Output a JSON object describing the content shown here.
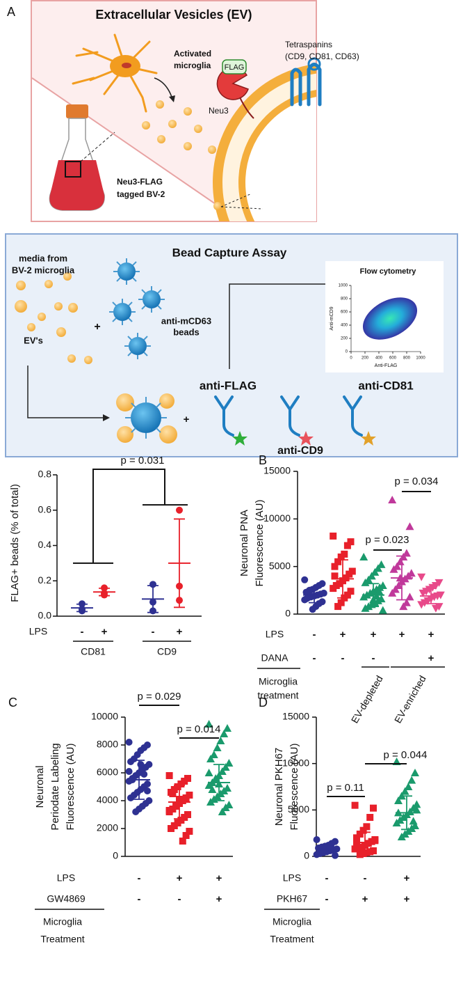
{
  "figure": {
    "panel_a": {
      "label": "A",
      "title": "Extracellular Vesicles (EV)",
      "cell_label": [
        "Activated",
        "microglia"
      ],
      "tag": "FLAG",
      "enzyme": "Neu3",
      "membrane_protein": [
        "Tetraspanins",
        "(CD9, CD81, CD63)"
      ],
      "culture_label": [
        "Neu3-FLAG",
        "tagged BV-2"
      ]
    },
    "bead_assay": {
      "title": "Bead Capture Assay",
      "source_label": [
        "media from",
        "BV-2 microglia"
      ],
      "vesicle_label": "EV's",
      "plus": "+",
      "bead_label": [
        "anti-mCD63",
        "beads"
      ],
      "antibodies": [
        "anti-FLAG",
        "anti-CD9",
        "anti-CD81"
      ],
      "plus_2": "+"
    }
  },
  "chart_data": [
    {
      "type": "density",
      "title": "Flow cytometry",
      "x_label": "Anti-FLAG",
      "y_label": "Anti-mCD9",
      "xlim": [
        0,
        1000
      ],
      "ylim": [
        0,
        1000
      ],
      "xticks": [
        0,
        200,
        400,
        600,
        800,
        1000
      ],
      "yticks": [
        0,
        200,
        400,
        600,
        800,
        1000
      ]
    },
    {
      "type": "dotplot",
      "y_label": [
        "FLAG+ beads (% of total)"
      ],
      "ylim": [
        0,
        0.8
      ],
      "yticks": [
        {
          "value": 0,
          "label": "0.0"
        },
        0.2,
        0.4,
        0.6,
        0.8
      ],
      "series": [
        {
          "color": "#2e3192",
          "marker": "circle",
          "values": [
            0.03,
            0.07,
            0.04
          ],
          "mean": 0.047,
          "sd": 0.021
        },
        {
          "color": "#e8202a",
          "marker": "circle",
          "values": [
            0.12,
            0.16,
            0.13
          ],
          "mean": 0.137,
          "sd": 0.021
        },
        {
          "color": "#2e3192",
          "marker": "circle",
          "values": [
            0.18,
            0.03,
            0.08
          ],
          "mean": 0.097,
          "sd": 0.076
        },
        {
          "color": "#e8202a",
          "marker": "circle",
          "values": [
            0.6,
            0.17,
            0.09
          ],
          "mean": 0.3,
          "sd": 0.25
        }
      ],
      "rows": [
        {
          "name": "LPS",
          "labels": [
            "-",
            "+",
            "-",
            "+"
          ]
        }
      ],
      "group_labels": [
        "CD81",
        "CD9"
      ],
      "annotations": [
        "p = 0.031"
      ]
    },
    {
      "type": "dotplot",
      "panel_label": "B",
      "y_label": [
        "Neuronal PNA",
        "Fluorescence (AU)"
      ],
      "ylim": [
        0,
        15000
      ],
      "yticks": [
        0,
        5000,
        10000,
        15000
      ],
      "series": [
        {
          "color": "#2e3192",
          "marker": "circle",
          "values": [
            3600,
            3200,
            3000,
            2800,
            2600,
            2500,
            2300,
            2200,
            2100,
            2000,
            1900,
            1800,
            1700,
            1500,
            1300,
            1100,
            800,
            500,
            2400,
            1600
          ],
          "mean": 2000,
          "sd": 800
        },
        {
          "color": "#e8202a",
          "marker": "square",
          "values": [
            8200,
            7600,
            7200,
            6300,
            6000,
            5500,
            5000,
            4500,
            4200,
            3800,
            3500,
            3200,
            3000,
            2700,
            2400,
            2000,
            1700,
            1200,
            800,
            4000
          ],
          "mean": 3700,
          "sd": 2000
        },
        {
          "color": "#1a9a6c",
          "marker": "triangle",
          "values": [
            6000,
            5200,
            4800,
            4400,
            4000,
            3600,
            3300,
            3000,
            2800,
            2600,
            2400,
            2200,
            2000,
            1800,
            1600,
            1400,
            1200,
            1000,
            800,
            600,
            400,
            2300,
            1900,
            1500
          ],
          "mean": 2000,
          "sd": 1200
        },
        {
          "color": "#c0399b",
          "marker": "triangle",
          "values": [
            12000,
            9200,
            6400,
            6000,
            5500,
            5000,
            4700,
            4300,
            4000,
            3700,
            3400,
            3000,
            2600,
            2200,
            1800,
            1200,
            800,
            3800
          ],
          "mean": 3800,
          "sd": 2300
        },
        {
          "color": "#e84a8a",
          "marker": "triangle-down",
          "values": [
            3900,
            3300,
            3000,
            2800,
            2600,
            2400,
            2200,
            2000,
            1900,
            1800,
            1600,
            1400,
            1200,
            1000,
            800,
            600
          ],
          "mean": 1900,
          "sd": 800
        }
      ],
      "rows": [
        {
          "name": "LPS",
          "labels": [
            "-",
            "+",
            "+",
            "+",
            "+"
          ]
        },
        {
          "name": "DANA",
          "labels": [
            "-",
            "-",
            "-",
            null,
            "+"
          ]
        }
      ],
      "treatment_label": [
        "Microglia",
        "treatment"
      ],
      "category_labels": [
        "EV-depleted",
        "EV-enriched"
      ],
      "annotations": [
        "p = 0.023",
        "p = 0.034"
      ]
    },
    {
      "type": "dotplot",
      "panel_label": "C",
      "y_label": [
        "Neuronal",
        "Periodate Labeling",
        "Fluorescence (AU)"
      ],
      "ylim": [
        0,
        10000
      ],
      "yticks": [
        0,
        2000,
        4000,
        6000,
        8000,
        10000
      ],
      "series": [
        {
          "color": "#2e3192",
          "marker": "circle",
          "values": [
            8200,
            8000,
            7800,
            7600,
            7300,
            7000,
            6800,
            6600,
            6400,
            6200,
            6000,
            5800,
            5600,
            5400,
            5200,
            5000,
            4800,
            4600,
            4400,
            4200,
            4000,
            3800,
            3600,
            3400,
            3200,
            5500,
            6100,
            4700,
            5900,
            6600
          ],
          "mean": 5500,
          "sd": 1400
        },
        {
          "color": "#e8202a",
          "marker": "square",
          "values": [
            5800,
            5600,
            5400,
            5200,
            5000,
            4800,
            4600,
            4400,
            4200,
            4000,
            3800,
            3600,
            3400,
            3200,
            3000,
            2800,
            2600,
            2400,
            2200,
            2000,
            1800,
            1500,
            1100,
            4100,
            3700,
            4500,
            3300
          ],
          "mean": 3900,
          "sd": 1200
        },
        {
          "color": "#1a9a6c",
          "marker": "triangle",
          "values": [
            9500,
            9200,
            8800,
            8300,
            7800,
            7300,
            7000,
            6700,
            6400,
            6100,
            5800,
            5500,
            5300,
            5100,
            4900,
            4700,
            4500,
            4300,
            4100,
            3900,
            3700,
            3500,
            3200,
            5200,
            5600,
            4800,
            6000
          ],
          "mean": 5300,
          "sd": 1300
        }
      ],
      "rows": [
        {
          "name": "LPS",
          "labels": [
            "-",
            "+",
            "+"
          ]
        },
        {
          "name": "GW4869",
          "labels": [
            "-",
            "-",
            "+"
          ]
        }
      ],
      "treatment_label": [
        "Microglia",
        "Treatment"
      ],
      "annotations": [
        "p = 0.029",
        "p = 0.014"
      ]
    },
    {
      "type": "dotplot",
      "panel_label": "D",
      "y_label": [
        "Neuronal PKH67",
        "Fluorescence (AU)"
      ],
      "ylim": [
        0,
        15000
      ],
      "yticks": [
        0,
        5000,
        10000,
        15000
      ],
      "series": [
        {
          "color": "#2e3192",
          "marker": "circle",
          "values": [
            1800,
            1600,
            1400,
            1200,
            1100,
            1000,
            900,
            800,
            700,
            600,
            500,
            400,
            300,
            200,
            100,
            850,
            950,
            650
          ],
          "mean": 800,
          "sd": 400
        },
        {
          "color": "#e8202a",
          "marker": "square",
          "values": [
            5500,
            5200,
            4200,
            3200,
            2800,
            2400,
            2000,
            1800,
            1600,
            1400,
            1200,
            1000,
            900,
            800,
            600,
            500,
            400,
            300,
            200,
            1500,
            1700
          ],
          "mean": 1500,
          "sd": 1100
        },
        {
          "color": "#1a9a6c",
          "marker": "triangle",
          "values": [
            10200,
            9000,
            8200,
            7500,
            7000,
            6500,
            6000,
            5600,
            5200,
            4800,
            4500,
            4200,
            3900,
            3600,
            3300,
            3000,
            2700,
            2400,
            2100,
            4700,
            5000,
            3800
          ],
          "mean": 4700,
          "sd": 1800
        }
      ],
      "rows": [
        {
          "name": "LPS",
          "labels": [
            "-",
            "-",
            "+"
          ]
        },
        {
          "name": "PKH67",
          "labels": [
            "-",
            "+",
            "+"
          ]
        }
      ],
      "treatment_label": [
        "Microglia",
        "Treatment"
      ],
      "annotations": [
        "p = 0.11",
        "p = 0.044"
      ]
    }
  ]
}
